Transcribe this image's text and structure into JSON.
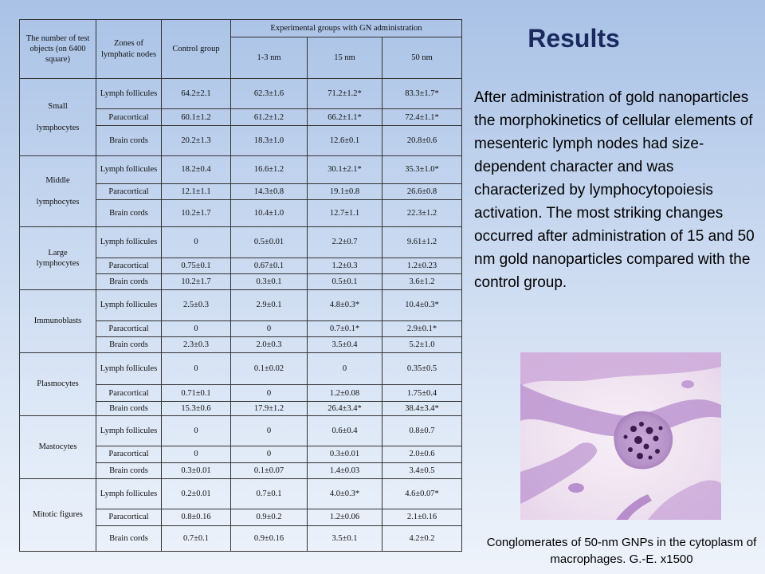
{
  "slide": {
    "title": "Results",
    "body": "After administration of gold nanoparticles the morphokinetics of cellular elements of mesenteric lymph nodes had size-dependent character and was characterized by lymphocytopoiesis activation. The most striking changes occurred after administration of 15 and 50 nm gold nanoparticles compared with the control group.",
    "image_caption": "Conglomerates of 50-nm GNPs in the cytoplasm of macrophages. G.-E. x1500"
  },
  "table": {
    "header": {
      "objects": "The number of test objects (on 6400 square)",
      "zones": "Zones of lymphatic\n\nnodes",
      "control": "Control group",
      "experimental": "Experimental groups with GN administration",
      "sizes": [
        "1-3 nm",
        "15 nm",
        "50 nm"
      ]
    },
    "groups": [
      {
        "name": "Small\n\nlymphocytes",
        "rows": [
          {
            "zone": "Lymph follicules",
            "values": [
              "64.2±2.1",
              "62.3±1.6",
              "71.2±1.2*",
              "83.3±1.7*"
            ]
          },
          {
            "zone": "Paracortical",
            "values": [
              "60.1±1.2",
              "61.2±1.2",
              "66.2±1.1*",
              "72.4±1.1*"
            ]
          },
          {
            "zone": "Brain cords",
            "values": [
              "20.2±1.3",
              "18.3±1.0",
              "12.6±0.1",
              "20.8±0.6"
            ]
          }
        ]
      },
      {
        "name": "Middle\n\nlymphocytes",
        "rows": [
          {
            "zone": "Lymph follicules",
            "values": [
              "18.2±0.4",
              "16.6±1.2",
              "30.1±2.1*",
              "35.3±1.0*"
            ]
          },
          {
            "zone": "Paracortical",
            "values": [
              "12.1±1.1",
              "14.3±0.8",
              "19.1±0.8",
              "26.6±0.8"
            ]
          },
          {
            "zone": "Brain cords",
            "values": [
              "10.2±1.7",
              "10.4±1.0",
              "12.7±1.1",
              "22.3±1.2"
            ]
          }
        ]
      },
      {
        "name": "Large\nlymphocytes",
        "rows": [
          {
            "zone": "Lymph follicules",
            "values": [
              "0",
              "0.5±0.01",
              "2.2±0.7",
              "9.61±1.2"
            ]
          },
          {
            "zone": "Paracortical",
            "values": [
              "0.75±0.1",
              "0.67±0.1",
              "1.2±0.3",
              "1.2±0.23"
            ]
          },
          {
            "zone": "Brain cords",
            "values": [
              "10.2±1.7",
              "0.3±0.1",
              "0.5±0.1",
              "3.6±1.2"
            ]
          }
        ]
      },
      {
        "name": "Immunoblasts",
        "rows": [
          {
            "zone": "Lymph follicules",
            "values": [
              "2.5±0.3",
              "2.9±0.1",
              "4.8±0.3*",
              "10.4±0.3*"
            ]
          },
          {
            "zone": "Paracortical",
            "values": [
              "0",
              "0",
              "0.7±0.1*",
              "2.9±0.1*"
            ]
          },
          {
            "zone": "Brain cords",
            "values": [
              "2.3±0.3",
              "2.0±0.3",
              "3.5±0.4",
              "5.2±1.0"
            ]
          }
        ]
      },
      {
        "name": "Plasmocytes",
        "rows": [
          {
            "zone": "Lymph follicules",
            "values": [
              "0",
              "0.1±0.02",
              "0",
              "0.35±0.5"
            ]
          },
          {
            "zone": "Paracortical",
            "values": [
              "0.71±0.1",
              "0",
              "1.2±0.08",
              "1.75±0.4"
            ]
          },
          {
            "zone": "Brain cords",
            "values": [
              "15.3±0.6",
              "17.9±1.2",
              "26.4±3.4*",
              "38.4±3.4*"
            ]
          }
        ]
      },
      {
        "name": "Mastocytes",
        "rows": [
          {
            "zone": "Lymph follicules",
            "values": [
              "0",
              "0",
              "0.6±0.4",
              "0.8±0.7"
            ]
          },
          {
            "zone": "Paracortical",
            "values": [
              "0",
              "0",
              "0.3±0.01",
              "2.0±0.6"
            ]
          },
          {
            "zone": "Brain cords",
            "values": [
              "0.3±0.01",
              "0.1±0.07",
              "1.4±0.03",
              "3.4±0.5"
            ]
          }
        ]
      },
      {
        "name": "Mitotic figures",
        "rows": [
          {
            "zone": "Lymph follicules",
            "values": [
              "0.2±0.01",
              "0.7±0.1",
              "4.0±0.3*",
              "4.6±0.07*"
            ]
          },
          {
            "zone": "Paracortical",
            "values": [
              "0.8±0.16",
              "0.9±0.2",
              "1.2±0.06",
              "2.1±0.16"
            ]
          },
          {
            "zone": "Brain cords",
            "values": [
              "0.7±0.1",
              "0.9±0.16",
              "3.5±0.1",
              "4.2±0.2"
            ]
          }
        ]
      }
    ]
  },
  "colors": {
    "title": "#1a2a5e",
    "background_top": "#a9c2e6",
    "background_bottom": "#eef3fb",
    "stain_purple": "#7a3f94"
  }
}
